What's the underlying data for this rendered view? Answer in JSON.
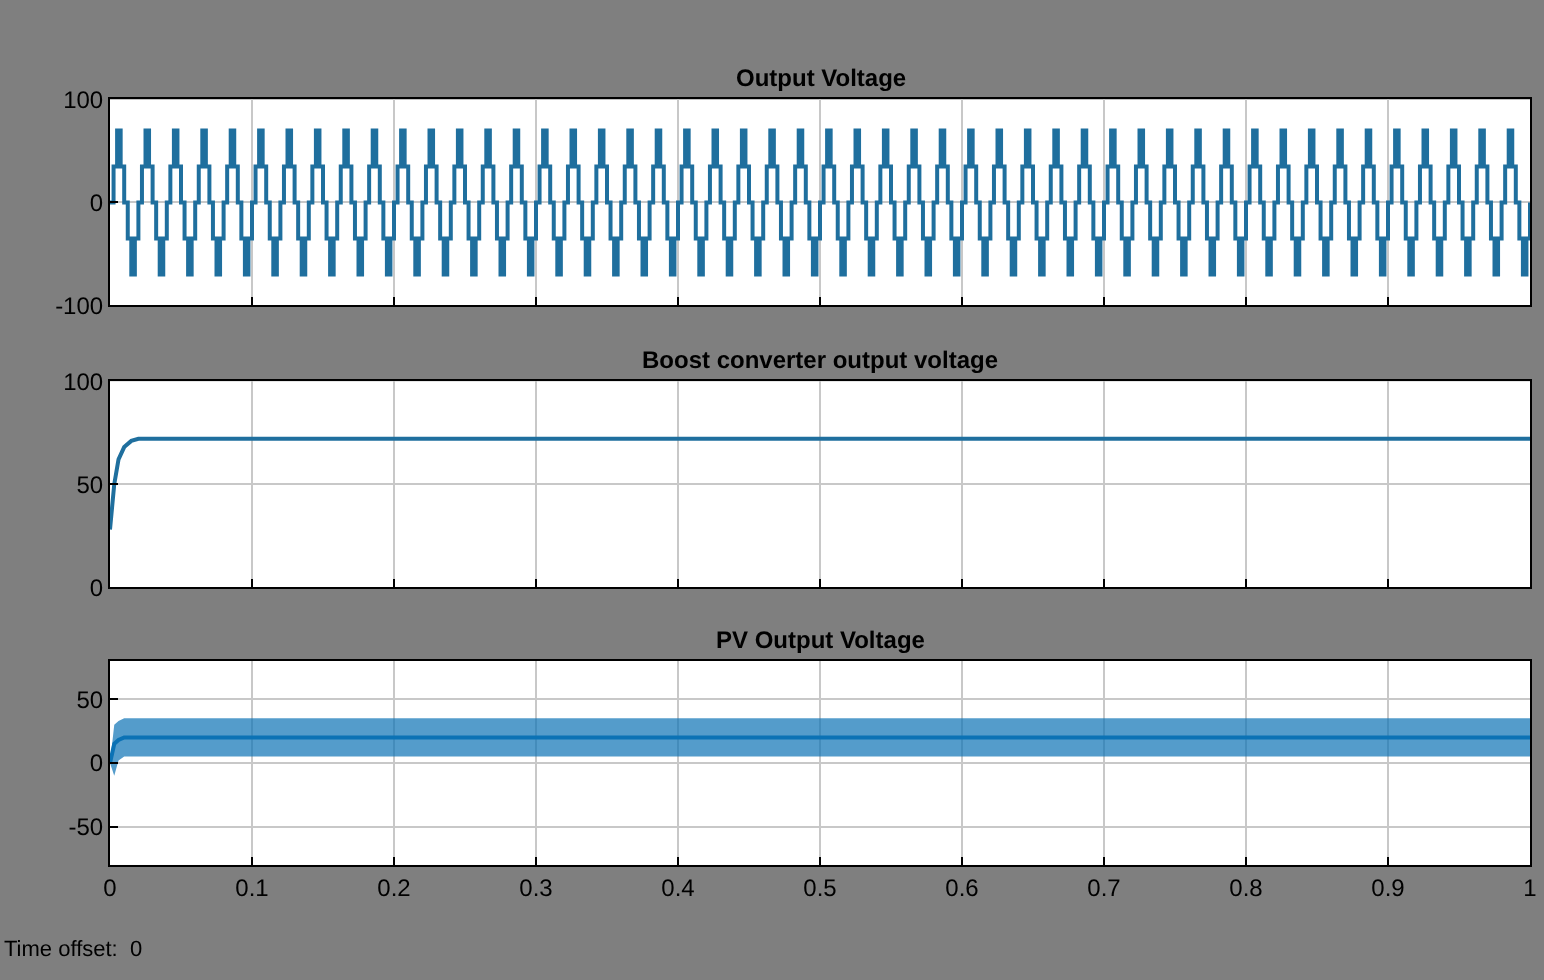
{
  "chart_data": [
    {
      "type": "step",
      "title": "Output Voltage",
      "xlim": [
        0,
        1
      ],
      "ylim": [
        -100,
        100
      ],
      "yticks": [
        -100,
        0,
        100
      ],
      "xticks": [
        0,
        0.1,
        0.2,
        0.3,
        0.4,
        0.5,
        0.6,
        0.7,
        0.8,
        0.9,
        1
      ],
      "grid": true,
      "tick_labels": "y",
      "series": [
        {
          "color": "#1f6f9e",
          "x": [
            0.0,
            0.0025,
            0.005,
            0.0075,
            0.01,
            0.0125,
            0.015,
            0.0175,
            0.02,
            0.0225,
            0.025,
            0.0275,
            0.03,
            0.0325,
            0.035,
            0.0375,
            0.04,
            0.0425,
            0.045,
            0.0475,
            0.05,
            0.0525,
            0.055,
            0.0575,
            0.06,
            0.0625,
            0.065,
            0.0675,
            0.07,
            0.0725,
            0.075,
            0.0775,
            0.08,
            0.0825,
            0.085,
            0.0875,
            0.09,
            0.0925,
            0.095,
            0.0975,
            0.1,
            0.1025,
            0.105,
            0.1075,
            0.11,
            0.1125,
            0.115,
            0.1175,
            0.12,
            0.1225,
            0.125,
            0.1275,
            0.13,
            0.1325,
            0.135,
            0.1375,
            0.14,
            0.1425,
            0.145,
            0.1475,
            0.15,
            0.1525,
            0.155,
            0.1575,
            0.16,
            0.1625,
            0.165,
            0.1675,
            0.17,
            0.1725,
            0.175,
            0.1775,
            0.18,
            0.1825,
            0.185,
            0.1875,
            0.19,
            0.1925,
            0.195,
            0.1975,
            0.2,
            0.2025,
            0.205,
            0.2075,
            0.21,
            0.2125,
            0.215,
            0.2175,
            0.22,
            0.2225,
            0.225,
            0.2275,
            0.23,
            0.2325,
            0.235,
            0.2375,
            0.24,
            0.2425,
            0.245,
            0.2475,
            0.25,
            0.2525,
            0.255,
            0.2575,
            0.26,
            0.2625,
            0.265,
            0.2675,
            0.27,
            0.2725,
            0.275,
            0.2775,
            0.28,
            0.2825,
            0.285,
            0.2875,
            0.29,
            0.2925,
            0.295,
            0.2975,
            0.3,
            0.3025,
            0.305,
            0.3075,
            0.31,
            0.3125,
            0.315,
            0.3175,
            0.32,
            0.3225,
            0.325,
            0.3275,
            0.33,
            0.3325,
            0.335,
            0.3375,
            0.34,
            0.3425,
            0.345,
            0.3475,
            0.35,
            0.3525,
            0.355,
            0.3575,
            0.36,
            0.3625,
            0.365,
            0.3675,
            0.37,
            0.3725,
            0.375,
            0.3775,
            0.38,
            0.3825,
            0.385,
            0.3875,
            0.39,
            0.3925,
            0.395,
            0.3975,
            0.4,
            0.4025,
            0.405,
            0.4075,
            0.41,
            0.4125,
            0.415,
            0.4175,
            0.42,
            0.4225,
            0.425,
            0.4275,
            0.43,
            0.4325,
            0.435,
            0.4375,
            0.44,
            0.4425,
            0.445,
            0.4475,
            0.45,
            0.4525,
            0.455,
            0.4575,
            0.46,
            0.4625,
            0.465,
            0.4675,
            0.47,
            0.4725,
            0.475,
            0.4775,
            0.48,
            0.4825,
            0.485,
            0.4875,
            0.49,
            0.4925,
            0.495,
            0.4975,
            0.5,
            0.5025,
            0.505,
            0.5075,
            0.51,
            0.5125,
            0.515,
            0.5175,
            0.52,
            0.5225,
            0.525,
            0.5275,
            0.53,
            0.5325,
            0.535,
            0.5375,
            0.54,
            0.5425,
            0.545,
            0.5475,
            0.55,
            0.5525,
            0.555,
            0.5575,
            0.56,
            0.5625,
            0.565,
            0.5675,
            0.57,
            0.5725,
            0.575,
            0.5775,
            0.58,
            0.5825,
            0.585,
            0.5875,
            0.59,
            0.5925,
            0.595,
            0.5975,
            0.6,
            0.6025,
            0.605,
            0.6075,
            0.61,
            0.6125,
            0.615,
            0.6175,
            0.62,
            0.6225,
            0.625,
            0.6275,
            0.63,
            0.6325,
            0.635,
            0.6375,
            0.64,
            0.6425,
            0.645,
            0.6475,
            0.65,
            0.6525,
            0.655,
            0.6575,
            0.66,
            0.6625,
            0.665,
            0.6675,
            0.67,
            0.6725,
            0.675,
            0.6775,
            0.68,
            0.6825,
            0.685,
            0.6875,
            0.69,
            0.6925,
            0.695,
            0.6975,
            0.7,
            0.7025,
            0.705,
            0.7075,
            0.71,
            0.7125,
            0.715,
            0.7175,
            0.72,
            0.7225,
            0.725,
            0.7275,
            0.73,
            0.7325,
            0.735,
            0.7375,
            0.74,
            0.7425,
            0.745,
            0.7475,
            0.75,
            0.7525,
            0.755,
            0.7575,
            0.76,
            0.7625,
            0.765,
            0.7675,
            0.77,
            0.7725,
            0.775,
            0.7775,
            0.78,
            0.7825,
            0.785,
            0.7875,
            0.79,
            0.7925,
            0.795,
            0.7975,
            0.8,
            0.8025,
            0.805,
            0.8075,
            0.81,
            0.8125,
            0.815,
            0.8175,
            0.82,
            0.8225,
            0.825,
            0.8275,
            0.83,
            0.8325,
            0.835,
            0.8375,
            0.84,
            0.8425,
            0.845,
            0.8475,
            0.85,
            0.8525,
            0.855,
            0.8575,
            0.86,
            0.8625,
            0.865,
            0.8675,
            0.87,
            0.8725,
            0.875,
            0.8775,
            0.88,
            0.8825,
            0.885,
            0.8875,
            0.89,
            0.8925,
            0.895,
            0.8975,
            0.9,
            0.9025,
            0.905,
            0.9075,
            0.91,
            0.9125,
            0.915,
            0.9175,
            0.92,
            0.9225,
            0.925,
            0.9275,
            0.93,
            0.9325,
            0.935,
            0.9375,
            0.94,
            0.9425,
            0.945,
            0.9475,
            0.95,
            0.9525,
            0.955,
            0.9575,
            0.96,
            0.9625,
            0.965,
            0.9675,
            0.97,
            0.9725,
            0.975,
            0.9775,
            0.98,
            0.9825,
            0.985,
            0.9875,
            0.99,
            0.9925,
            0.995,
            0.9975,
            1
          ],
          "values": [
            0,
            35,
            70,
            35,
            0,
            -35,
            -70,
            -35,
            0,
            35,
            70,
            35,
            0,
            -35,
            -70,
            -35,
            0,
            35,
            70,
            35,
            0,
            -35,
            -70,
            -35,
            0,
            35,
            70,
            35,
            0,
            -35,
            -70,
            -35,
            0,
            35,
            70,
            35,
            0,
            -35,
            -70,
            -35,
            0,
            35,
            70,
            35,
            0,
            -35,
            -70,
            -35,
            0,
            35,
            70,
            35,
            0,
            -35,
            -70,
            -35,
            0,
            35,
            70,
            35,
            0,
            -35,
            -70,
            -35,
            0,
            35,
            70,
            35,
            0,
            -35,
            -70,
            -35,
            0,
            35,
            70,
            35,
            0,
            -35,
            -70,
            -35,
            0,
            35,
            70,
            35,
            0,
            -35,
            -70,
            -35,
            0,
            35,
            70,
            35,
            0,
            -35,
            -70,
            -35,
            0,
            35,
            70,
            35,
            0,
            -35,
            -70,
            -35,
            0,
            35,
            70,
            35,
            0,
            -35,
            -70,
            -35,
            0,
            35,
            70,
            35,
            0,
            -35,
            -70,
            -35,
            0,
            35,
            70,
            35,
            0,
            -35,
            -70,
            -35,
            0,
            35,
            70,
            35,
            0,
            -35,
            -70,
            -35,
            0,
            35,
            70,
            35,
            0,
            -35,
            -70,
            -35,
            0,
            35,
            70,
            35,
            0,
            -35,
            -70,
            -35,
            0,
            35,
            70,
            35,
            0,
            -35,
            -70,
            -35,
            0,
            35,
            70,
            35,
            0,
            -35,
            -70,
            -35,
            0,
            35,
            70,
            35,
            0,
            -35,
            -70,
            -35,
            0,
            35,
            70,
            35,
            0,
            -35,
            -70,
            -35,
            0,
            35,
            70,
            35,
            0,
            -35,
            -70,
            -35,
            0,
            35,
            70,
            35,
            0,
            -35,
            -70,
            -35,
            0,
            35,
            70,
            35,
            0,
            -35,
            -70,
            -35,
            0,
            35,
            70,
            35,
            0,
            -35,
            -70,
            -35,
            0,
            35,
            70,
            35,
            0,
            -35,
            -70,
            -35,
            0,
            35,
            70,
            35,
            0,
            -35,
            -70,
            -35,
            0,
            35,
            70,
            35,
            0,
            -35,
            -70,
            -35,
            0,
            35,
            70,
            35,
            0,
            -35,
            -70,
            -35,
            0,
            35,
            70,
            35,
            0,
            -35,
            -70,
            -35,
            0,
            35,
            70,
            35,
            0,
            -35,
            -70,
            -35,
            0,
            35,
            70,
            35,
            0,
            -35,
            -70,
            -35,
            0,
            35,
            70,
            35,
            0,
            -35,
            -70,
            -35,
            0,
            35,
            70,
            35,
            0,
            -35,
            -70,
            -35,
            0,
            35,
            70,
            35,
            0,
            -35,
            -70,
            -35,
            0,
            35,
            70,
            35,
            0,
            -35,
            -70,
            -35,
            0,
            35,
            70,
            35,
            0,
            -35,
            -70,
            -35,
            0,
            35,
            70,
            35,
            0,
            -35,
            -70,
            -35,
            0,
            35,
            70,
            35,
            0,
            -35,
            -70,
            -35,
            0,
            35,
            70,
            35,
            0,
            -35,
            -70,
            -35,
            0,
            35,
            70,
            35,
            0,
            -35,
            -70,
            -35,
            0,
            35,
            70,
            35,
            0,
            -35,
            -70,
            -35,
            0,
            35,
            70,
            35,
            0,
            -35,
            -70,
            -35,
            0,
            35,
            70,
            35,
            0,
            -35,
            -70,
            -35,
            0,
            35,
            70,
            35,
            0,
            -35,
            -70,
            -35,
            0,
            35,
            70,
            35,
            0,
            -35,
            -70,
            -35,
            0,
            35,
            70,
            35,
            0,
            -35,
            -70,
            -35,
            0,
            35,
            70,
            35,
            0,
            -35,
            -70,
            -35,
            0
          ]
        }
      ]
    },
    {
      "type": "line",
      "title": "Boost converter output voltage",
      "xlim": [
        0,
        1
      ],
      "ylim": [
        0,
        100
      ],
      "yticks": [
        0,
        50,
        100
      ],
      "xticks": [
        0,
        0.1,
        0.2,
        0.3,
        0.4,
        0.5,
        0.6,
        0.7,
        0.8,
        0.9,
        1
      ],
      "grid": true,
      "tick_labels": "y",
      "series": [
        {
          "color": "#1f6f9e",
          "x": [
            0,
            0.003,
            0.006,
            0.01,
            0.015,
            0.02,
            1
          ],
          "values": [
            28,
            50,
            62,
            68,
            71,
            72,
            72
          ]
        }
      ]
    },
    {
      "type": "line",
      "title": "PV Output Voltage",
      "xlim": [
        0,
        1
      ],
      "ylim": [
        -80,
        80
      ],
      "yticks": [
        -50,
        0,
        50
      ],
      "xticks": [
        0,
        0.1,
        0.2,
        0.3,
        0.4,
        0.5,
        0.6,
        0.7,
        0.8,
        0.9,
        1
      ],
      "grid": true,
      "annotations": [
        "Time offset:  0"
      ],
      "series": [
        {
          "color": "#0b72b5",
          "x": [
            0,
            0.003,
            0.006,
            0.01,
            0.02,
            1
          ],
          "values": [
            0,
            15,
            18,
            20,
            20,
            20
          ],
          "lower": [
            0,
            -10,
            2,
            5,
            5,
            5
          ],
          "upper": [
            0,
            30,
            33,
            35,
            35,
            35
          ]
        }
      ]
    }
  ]
}
